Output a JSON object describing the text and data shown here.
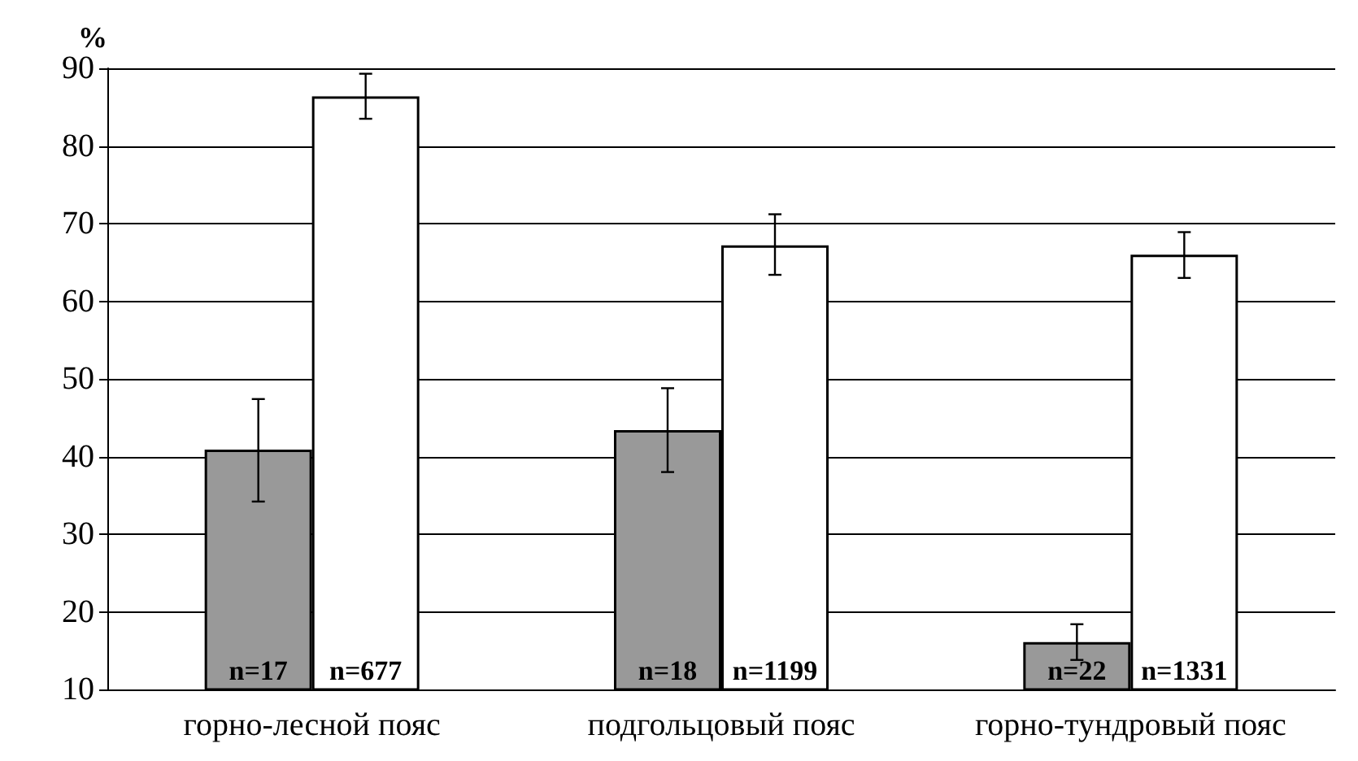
{
  "chart_data": {
    "type": "bar",
    "ylabel": "%",
    "categories": [
      "горно-лесной пояс",
      "подгольцовый пояс",
      "горно-тундровый пояс"
    ],
    "series": [
      {
        "color": "#999999",
        "values": [
          40.9,
          43.4,
          16.1
        ],
        "errors": [
          [
            34.2,
            47.4
          ],
          [
            38,
            48.8
          ],
          [
            13.8,
            18.4
          ]
        ]
      },
      {
        "color": "#ffffff",
        "values": [
          86.4,
          67.2,
          66
        ],
        "errors": [
          [
            83.5,
            89.3
          ],
          [
            63.4,
            71.2
          ],
          [
            63,
            68.9
          ]
        ]
      }
    ],
    "annotations": [
      {
        "text": "n=17",
        "x": "горно-лесной пояс",
        "y": 10
      },
      {
        "text": "n=677",
        "x": "горно-лесной пояс",
        "y": 10
      },
      {
        "text": "n=18",
        "x": "подгольцовый пояс",
        "y": 10
      },
      {
        "text": "n=1199",
        "x": "подгольцовый пояс",
        "y": 10
      },
      {
        "text": "n=22",
        "x": "горно-тундровый пояс",
        "y": 10
      },
      {
        "text": "n=1331",
        "x": "горно-тундровый пояс",
        "y": 10
      }
    ],
    "ylim": [
      10,
      90
    ],
    "yticks": [
      10,
      20,
      30,
      40,
      50,
      60,
      70,
      80,
      90
    ],
    "grid": "y"
  }
}
